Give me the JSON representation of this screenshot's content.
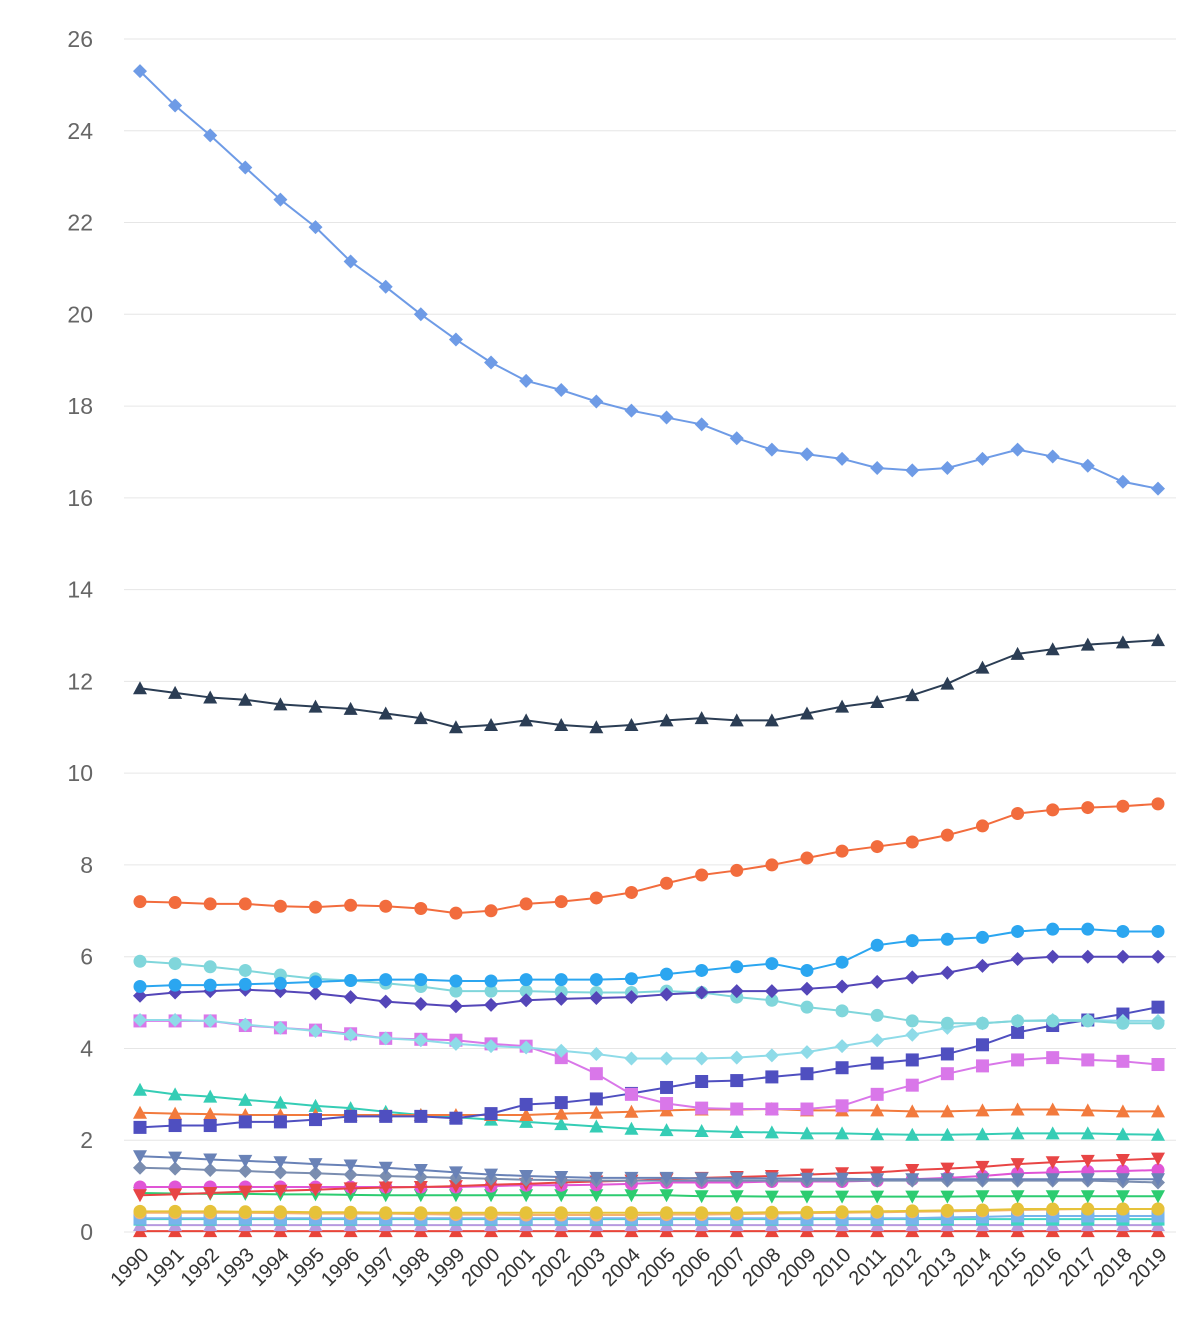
{
  "chart_data": {
    "type": "line",
    "title": "",
    "xlabel": "",
    "ylabel": "",
    "ylim": [
      0,
      26
    ],
    "y_ticks": [
      0,
      2,
      4,
      6,
      8,
      10,
      12,
      14,
      16,
      18,
      20,
      22,
      24,
      26
    ],
    "y_tick_labels": [
      "0",
      "2",
      "4",
      "6",
      "8",
      "10",
      "12",
      "14",
      "16",
      "18",
      "20",
      "22",
      "24",
      "26"
    ],
    "grid": true,
    "legend": "none",
    "x": [
      "1990",
      "1991",
      "1992",
      "1993",
      "1994",
      "1995",
      "1996",
      "1997",
      "1998",
      "1999",
      "2000",
      "2001",
      "2002",
      "2003",
      "2004",
      "2005",
      "2006",
      "2007",
      "2008",
      "2009",
      "2010",
      "2011",
      "2012",
      "2013",
      "2014",
      "2015",
      "2016",
      "2017",
      "2018",
      "2019"
    ],
    "series": [
      {
        "color": "#6e9be6",
        "marker": "diamond",
        "values": [
          25.3,
          24.55,
          23.9,
          23.2,
          22.5,
          21.9,
          21.15,
          20.6,
          20.0,
          19.45,
          18.95,
          18.55,
          18.35,
          18.1,
          17.9,
          17.75,
          17.6,
          17.3,
          17.05,
          16.95,
          16.85,
          16.65,
          16.6,
          16.65,
          16.85,
          17.05,
          16.9,
          16.7,
          16.35,
          16.2
        ]
      },
      {
        "color": "#2b3d54",
        "marker": "triangle",
        "values": [
          11.85,
          11.75,
          11.65,
          11.6,
          11.5,
          11.45,
          11.4,
          11.3,
          11.2,
          11.0,
          11.05,
          11.15,
          11.05,
          11.0,
          11.05,
          11.15,
          11.2,
          11.15,
          11.15,
          11.3,
          11.45,
          11.55,
          11.7,
          11.95,
          12.3,
          12.6,
          12.7,
          12.8,
          12.85,
          12.9
        ]
      },
      {
        "color": "#f26c3d",
        "marker": "circle",
        "values": [
          7.2,
          7.18,
          7.15,
          7.15,
          7.1,
          7.08,
          7.12,
          7.1,
          7.05,
          6.95,
          7.0,
          7.15,
          7.2,
          7.28,
          7.4,
          7.6,
          7.78,
          7.88,
          8.0,
          8.15,
          8.3,
          8.4,
          8.5,
          8.65,
          8.85,
          9.12,
          9.2,
          9.25,
          9.28,
          9.33
        ]
      },
      {
        "color": "#2ba6f0",
        "marker": "circle",
        "values": [
          5.35,
          5.38,
          5.38,
          5.4,
          5.42,
          5.45,
          5.48,
          5.5,
          5.5,
          5.47,
          5.47,
          5.5,
          5.5,
          5.5,
          5.52,
          5.62,
          5.7,
          5.78,
          5.85,
          5.7,
          5.88,
          6.25,
          6.35,
          6.38,
          6.42,
          6.55,
          6.6,
          6.6,
          6.55,
          6.55
        ]
      },
      {
        "color": "#5446b8",
        "marker": "diamond",
        "values": [
          5.15,
          5.22,
          5.25,
          5.28,
          5.25,
          5.2,
          5.12,
          5.02,
          4.97,
          4.92,
          4.95,
          5.05,
          5.08,
          5.1,
          5.12,
          5.18,
          5.22,
          5.25,
          5.25,
          5.3,
          5.35,
          5.45,
          5.55,
          5.65,
          5.8,
          5.95,
          6.0,
          6.0,
          6.0,
          6.0
        ]
      },
      {
        "color": "#80d6db",
        "marker": "circle",
        "values": [
          5.9,
          5.85,
          5.78,
          5.7,
          5.6,
          5.52,
          5.48,
          5.42,
          5.35,
          5.25,
          5.25,
          5.25,
          5.23,
          5.22,
          5.22,
          5.25,
          5.22,
          5.12,
          5.05,
          4.9,
          4.82,
          4.72,
          4.6,
          4.55,
          4.55,
          4.6,
          4.6,
          4.6,
          4.55,
          4.55
        ]
      },
      {
        "color": "#8edbe8",
        "marker": "diamond",
        "values": [
          4.62,
          4.62,
          4.6,
          4.52,
          4.45,
          4.38,
          4.3,
          4.22,
          4.18,
          4.1,
          4.05,
          4.02,
          3.95,
          3.88,
          3.78,
          3.78,
          3.78,
          3.8,
          3.85,
          3.92,
          4.05,
          4.18,
          4.3,
          4.45,
          4.55,
          4.6,
          4.62,
          4.62,
          4.6,
          4.6
        ]
      },
      {
        "color": "#d977e9",
        "marker": "square",
        "values": [
          4.6,
          4.6,
          4.6,
          4.5,
          4.45,
          4.4,
          4.32,
          4.22,
          4.2,
          4.18,
          4.1,
          4.05,
          3.8,
          3.45,
          3.0,
          2.8,
          2.7,
          2.68,
          2.68,
          2.68,
          2.75,
          3.0,
          3.2,
          3.45,
          3.62,
          3.75,
          3.8,
          3.75,
          3.72,
          3.65
        ]
      },
      {
        "color": "#4f4fc0",
        "marker": "square",
        "values": [
          2.28,
          2.32,
          2.32,
          2.4,
          2.4,
          2.45,
          2.52,
          2.52,
          2.52,
          2.48,
          2.58,
          2.78,
          2.82,
          2.9,
          3.02,
          3.15,
          3.28,
          3.3,
          3.38,
          3.45,
          3.58,
          3.68,
          3.75,
          3.88,
          4.08,
          4.35,
          4.5,
          4.62,
          4.75,
          4.9
        ]
      },
      {
        "color": "#f27a3d",
        "marker": "triangle",
        "values": [
          2.6,
          2.58,
          2.57,
          2.55,
          2.55,
          2.55,
          2.55,
          2.55,
          2.55,
          2.55,
          2.55,
          2.55,
          2.58,
          2.6,
          2.62,
          2.65,
          2.67,
          2.67,
          2.68,
          2.65,
          2.65,
          2.65,
          2.63,
          2.63,
          2.65,
          2.67,
          2.67,
          2.65,
          2.63,
          2.63
        ]
      },
      {
        "color": "#35cdb5",
        "marker": "triangle",
        "values": [
          3.1,
          3.0,
          2.95,
          2.88,
          2.82,
          2.75,
          2.7,
          2.62,
          2.55,
          2.5,
          2.45,
          2.4,
          2.35,
          2.3,
          2.25,
          2.22,
          2.2,
          2.18,
          2.17,
          2.15,
          2.15,
          2.13,
          2.12,
          2.12,
          2.13,
          2.15,
          2.15,
          2.15,
          2.13,
          2.12
        ]
      },
      {
        "color": "#6982b7",
        "marker": "triangle-down",
        "values": [
          1.65,
          1.62,
          1.58,
          1.55,
          1.52,
          1.48,
          1.45,
          1.4,
          1.35,
          1.3,
          1.25,
          1.22,
          1.2,
          1.18,
          1.18,
          1.18,
          1.17,
          1.17,
          1.17,
          1.16,
          1.16,
          1.15,
          1.15,
          1.15,
          1.15,
          1.15,
          1.15,
          1.15,
          1.15,
          1.15
        ]
      },
      {
        "color": "#7a8db0",
        "marker": "diamond",
        "values": [
          1.4,
          1.38,
          1.35,
          1.33,
          1.3,
          1.28,
          1.25,
          1.22,
          1.2,
          1.18,
          1.16,
          1.14,
          1.13,
          1.12,
          1.12,
          1.12,
          1.12,
          1.12,
          1.12,
          1.12,
          1.12,
          1.12,
          1.12,
          1.12,
          1.12,
          1.12,
          1.12,
          1.12,
          1.1,
          1.08
        ]
      },
      {
        "color": "#e84545",
        "marker": "triangle-down",
        "values": [
          0.8,
          0.82,
          0.85,
          0.88,
          0.9,
          0.92,
          0.95,
          0.97,
          0.98,
          1.0,
          1.03,
          1.05,
          1.08,
          1.1,
          1.12,
          1.15,
          1.18,
          1.2,
          1.22,
          1.25,
          1.28,
          1.3,
          1.35,
          1.38,
          1.42,
          1.48,
          1.52,
          1.55,
          1.57,
          1.6
        ]
      },
      {
        "color": "#e055d6",
        "marker": "circle",
        "values": [
          0.98,
          0.98,
          0.98,
          0.98,
          0.98,
          0.98,
          0.98,
          0.98,
          0.98,
          0.98,
          1.0,
          1.02,
          1.02,
          1.03,
          1.05,
          1.08,
          1.08,
          1.08,
          1.1,
          1.1,
          1.1,
          1.12,
          1.15,
          1.18,
          1.22,
          1.28,
          1.3,
          1.32,
          1.33,
          1.35
        ]
      },
      {
        "color": "#2ccc70",
        "marker": "triangle-down",
        "values": [
          0.85,
          0.84,
          0.83,
          0.83,
          0.82,
          0.82,
          0.81,
          0.8,
          0.8,
          0.8,
          0.8,
          0.8,
          0.8,
          0.8,
          0.8,
          0.8,
          0.78,
          0.78,
          0.77,
          0.77,
          0.77,
          0.77,
          0.77,
          0.77,
          0.78,
          0.78,
          0.78,
          0.78,
          0.78,
          0.78
        ]
      },
      {
        "color": "#e6c23a",
        "marker": "circle",
        "values": [
          0.45,
          0.45,
          0.45,
          0.44,
          0.44,
          0.43,
          0.43,
          0.42,
          0.42,
          0.42,
          0.42,
          0.42,
          0.42,
          0.42,
          0.42,
          0.42,
          0.42,
          0.42,
          0.43,
          0.43,
          0.44,
          0.45,
          0.46,
          0.47,
          0.48,
          0.5,
          0.5,
          0.5,
          0.5,
          0.5
        ]
      },
      {
        "color": "#f5b270",
        "marker": "circle",
        "values": [
          0.42,
          0.42,
          0.42,
          0.42,
          0.41,
          0.4,
          0.4,
          0.4,
          0.39,
          0.38,
          0.38,
          0.37,
          0.37,
          0.37,
          0.37,
          0.38,
          0.38,
          0.39,
          0.4,
          0.41,
          0.42,
          0.43,
          0.44,
          0.45,
          0.46,
          0.48,
          0.49,
          0.5,
          0.5,
          0.5
        ]
      },
      {
        "color": "#78b4ec",
        "marker": "square",
        "values": [
          0.3,
          0.3,
          0.3,
          0.3,
          0.3,
          0.3,
          0.3,
          0.3,
          0.3,
          0.3,
          0.3,
          0.3,
          0.3,
          0.3,
          0.3,
          0.3,
          0.3,
          0.3,
          0.3,
          0.3,
          0.3,
          0.3,
          0.3,
          0.32,
          0.33,
          0.35,
          0.35,
          0.35,
          0.35,
          0.35
        ]
      },
      {
        "color": "#3ed6c2",
        "marker": "square",
        "values": [
          0.28,
          0.28,
          0.28,
          0.28,
          0.28,
          0.28,
          0.28,
          0.28,
          0.28,
          0.28,
          0.28,
          0.28,
          0.28,
          0.28,
          0.28,
          0.28,
          0.28,
          0.28,
          0.28,
          0.28,
          0.28,
          0.28,
          0.28,
          0.28,
          0.28,
          0.28,
          0.28,
          0.28,
          0.28,
          0.28
        ]
      },
      {
        "color": "#b69adf",
        "marker": "triangle",
        "values": [
          0.15,
          0.15,
          0.15,
          0.15,
          0.15,
          0.15,
          0.15,
          0.15,
          0.15,
          0.15,
          0.15,
          0.15,
          0.15,
          0.15,
          0.15,
          0.15,
          0.15,
          0.15,
          0.15,
          0.15,
          0.15,
          0.15,
          0.15,
          0.15,
          0.15,
          0.15,
          0.15,
          0.15,
          0.15,
          0.15
        ]
      },
      {
        "color": "#e8443a",
        "marker": "triangle",
        "values": [
          0.02,
          0.02,
          0.02,
          0.02,
          0.02,
          0.02,
          0.02,
          0.02,
          0.02,
          0.02,
          0.02,
          0.02,
          0.02,
          0.02,
          0.02,
          0.02,
          0.02,
          0.02,
          0.02,
          0.02,
          0.02,
          0.02,
          0.02,
          0.02,
          0.02,
          0.02,
          0.02,
          0.02,
          0.02,
          0.02
        ]
      }
    ]
  }
}
